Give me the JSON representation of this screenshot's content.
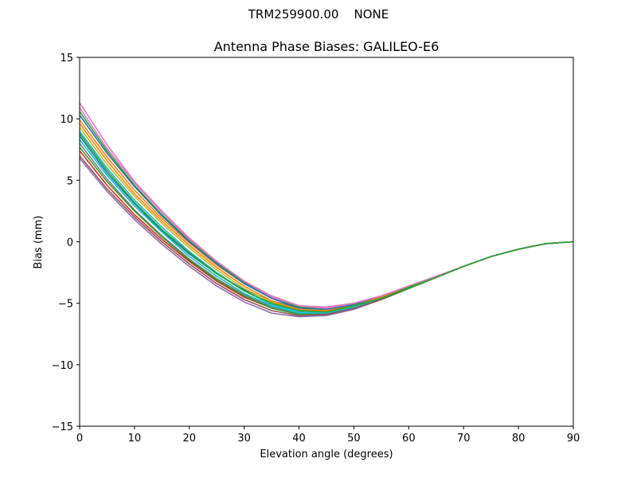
{
  "figure": {
    "suptitle": "TRM259900.00    NONE"
  },
  "chart_data": {
    "type": "line",
    "title": "Antenna Phase Biases: GALILEO-E6",
    "xlabel": "Elevation angle (degrees)",
    "ylabel": "Bias (mm)",
    "xlim": [
      0,
      90
    ],
    "ylim": [
      -15,
      15
    ],
    "xticks": [
      0,
      10,
      20,
      30,
      40,
      50,
      60,
      70,
      80,
      90
    ],
    "yticks": [
      -15,
      -10,
      -5,
      0,
      5,
      10,
      15
    ],
    "ytick_labels": [
      "−15",
      "−10",
      "−5",
      "0",
      "5",
      "10",
      "15"
    ],
    "grid": false,
    "legend": "none",
    "x": [
      0,
      5,
      10,
      15,
      20,
      25,
      30,
      35,
      40,
      45,
      50,
      55,
      60,
      65,
      70,
      75,
      80,
      85,
      90
    ],
    "series": [
      {
        "color": "#1f77b4",
        "values": [
          8.6,
          5.6,
          3.1,
          0.9,
          -1.0,
          -2.6,
          -3.9,
          -4.8,
          -5.4,
          -5.5,
          -5.1,
          -4.5,
          -3.7,
          -2.9,
          -2.0,
          -1.2,
          -0.6,
          -0.15,
          0.0
        ]
      },
      {
        "color": "#ff7f0e",
        "values": [
          9.9,
          6.9,
          4.2,
          1.9,
          -0.1,
          -1.9,
          -3.4,
          -4.5,
          -5.2,
          -5.4,
          -5.1,
          -4.5,
          -3.7,
          -2.9,
          -2.0,
          -1.2,
          -0.6,
          -0.15,
          0.0
        ]
      },
      {
        "color": "#2ca02c",
        "values": [
          10.6,
          7.4,
          4.6,
          2.2,
          0.1,
          -1.7,
          -3.3,
          -4.5,
          -5.3,
          -5.5,
          -5.1,
          -4.5,
          -3.7,
          -2.9,
          -2.0,
          -1.2,
          -0.6,
          -0.15,
          0.0
        ]
      },
      {
        "color": "#d62728",
        "values": [
          7.4,
          4.6,
          2.2,
          0.2,
          -1.6,
          -3.2,
          -4.5,
          -5.4,
          -5.9,
          -5.9,
          -5.4,
          -4.7,
          -3.8,
          -2.9,
          -2.0,
          -1.2,
          -0.6,
          -0.15,
          0.0
        ]
      },
      {
        "color": "#9467bd",
        "values": [
          6.8,
          4.1,
          1.8,
          -0.2,
          -2.0,
          -3.6,
          -4.9,
          -5.8,
          -6.1,
          -6.0,
          -5.5,
          -4.7,
          -3.8,
          -2.9,
          -2.0,
          -1.2,
          -0.6,
          -0.15,
          0.0
        ]
      },
      {
        "color": "#8c564b",
        "values": [
          7.0,
          4.3,
          2.0,
          0.0,
          -1.8,
          -3.4,
          -4.7,
          -5.6,
          -6.0,
          -5.9,
          -5.4,
          -4.7,
          -3.8,
          -2.9,
          -2.0,
          -1.2,
          -0.6,
          -0.15,
          0.0
        ]
      },
      {
        "color": "#e377c2",
        "values": [
          11.3,
          7.9,
          4.9,
          2.5,
          0.3,
          -1.6,
          -3.2,
          -4.5,
          -5.2,
          -5.3,
          -5.0,
          -4.4,
          -3.6,
          -2.8,
          -2.0,
          -1.2,
          -0.6,
          -0.15,
          0.0
        ]
      },
      {
        "color": "#7f7f7f",
        "values": [
          8.0,
          5.1,
          2.6,
          0.5,
          -1.4,
          -3.0,
          -4.3,
          -5.3,
          -5.8,
          -5.8,
          -5.3,
          -4.6,
          -3.7,
          -2.9,
          -2.0,
          -1.2,
          -0.6,
          -0.15,
          0.0
        ]
      },
      {
        "color": "#bcbd22",
        "values": [
          9.3,
          6.3,
          3.7,
          1.5,
          -0.5,
          -2.3,
          -3.8,
          -4.9,
          -5.6,
          -5.7,
          -5.2,
          -4.6,
          -3.7,
          -2.9,
          -2.0,
          -1.2,
          -0.6,
          -0.15,
          0.0
        ]
      },
      {
        "color": "#17becf",
        "values": [
          9.0,
          6.0,
          3.4,
          1.2,
          -0.8,
          -2.5,
          -4.0,
          -5.1,
          -5.7,
          -5.7,
          -5.2,
          -4.6,
          -3.7,
          -2.9,
          -2.0,
          -1.2,
          -0.6,
          -0.15,
          0.0
        ]
      },
      {
        "color": "#1f77b4",
        "values": [
          10.3,
          7.2,
          4.5,
          2.1,
          0.0,
          -1.8,
          -3.4,
          -4.6,
          -5.4,
          -5.5,
          -5.1,
          -4.5,
          -3.7,
          -2.9,
          -2.0,
          -1.2,
          -0.6,
          -0.15,
          0.0
        ]
      },
      {
        "color": "#ff7f0e",
        "values": [
          9.6,
          6.6,
          3.9,
          1.7,
          -0.3,
          -2.1,
          -3.6,
          -4.8,
          -5.5,
          -5.6,
          -5.2,
          -4.5,
          -3.7,
          -2.9,
          -2.0,
          -1.2,
          -0.6,
          -0.15,
          0.0
        ]
      },
      {
        "color": "#2ca02c",
        "values": [
          7.7,
          4.9,
          2.5,
          0.4,
          -1.5,
          -3.1,
          -4.4,
          -5.4,
          -5.9,
          -5.8,
          -5.3,
          -4.6,
          -3.8,
          -2.9,
          -2.0,
          -1.2,
          -0.6,
          -0.15,
          0.0
        ]
      },
      {
        "color": "#17becf",
        "values": [
          8.3,
          5.4,
          2.9,
          0.8,
          -1.2,
          -2.8,
          -4.2,
          -5.2,
          -5.8,
          -5.8,
          -5.3,
          -4.6,
          -3.7,
          -2.9,
          -2.0,
          -1.2,
          -0.6,
          -0.15,
          0.0
        ]
      },
      {
        "color": "#e377c2",
        "values": [
          10.9,
          7.6,
          4.8,
          2.4,
          0.2,
          -1.6,
          -3.2,
          -4.4,
          -5.2,
          -5.4,
          -5.0,
          -4.4,
          -3.6,
          -2.8,
          -2.0,
          -1.2,
          -0.6,
          -0.15,
          0.0
        ]
      },
      {
        "color": "#2ca02c",
        "values": [
          8.8,
          5.8,
          3.2,
          1.0,
          -0.9,
          -2.6,
          -4.0,
          -5.0,
          -5.6,
          -5.7,
          -5.2,
          -4.6,
          -3.7,
          -2.9,
          -2.0,
          -1.2,
          -0.6,
          -0.15,
          0.0
        ]
      }
    ]
  }
}
